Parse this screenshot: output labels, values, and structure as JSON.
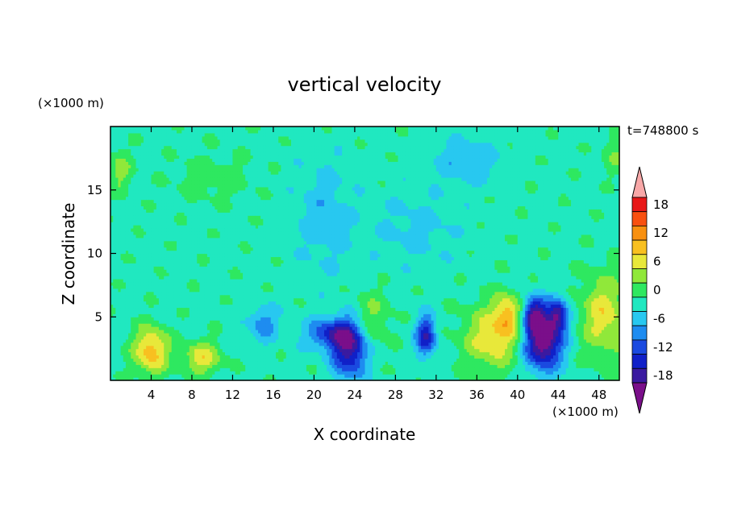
{
  "chart_data": {
    "type": "heatmap",
    "title": "vertical velocity",
    "xlabel": "X coordinate",
    "ylabel": "Z coordinate",
    "x_unit": "(×1000 m)",
    "y_unit": "(×1000 m)",
    "time_label": "t=748800 s",
    "xlim": [
      0,
      50
    ],
    "ylim": [
      0,
      20
    ],
    "xticks": [
      4,
      8,
      12,
      16,
      20,
      24,
      28,
      32,
      36,
      40,
      44,
      48
    ],
    "yticks": [
      5,
      10,
      15
    ],
    "colorbar": {
      "levels": [
        -21,
        -18,
        -15,
        -12,
        -9,
        -6,
        -3,
        0,
        3,
        6,
        9,
        12,
        15,
        18,
        21
      ],
      "labels": [
        18,
        12,
        6,
        0,
        -6,
        -12,
        -18
      ],
      "colors": [
        "#7a0f8a",
        "#3a1aa0",
        "#1020c8",
        "#1a4ae0",
        "#1e8cf0",
        "#28c8f0",
        "#20e8c0",
        "#2ee860",
        "#90e83a",
        "#e8e83a",
        "#f8c020",
        "#f89010",
        "#f85010",
        "#e81818",
        "#f8a8a8"
      ],
      "extend": "both"
    },
    "background_value": -1,
    "features": [
      {
        "x": 4,
        "z": 2.4,
        "value": 12,
        "sx": 1.2,
        "sz": 1.3
      },
      {
        "x": 9,
        "z": 1.8,
        "value": 9,
        "sx": 1.3,
        "sz": 0.9
      },
      {
        "x": 15,
        "z": 4.5,
        "value": -7,
        "sx": 1,
        "sz": 1
      },
      {
        "x": 23.5,
        "z": 2.6,
        "value": -17,
        "sx": 1.2,
        "sz": 1.6
      },
      {
        "x": 21.5,
        "z": 3.7,
        "value": -11,
        "sx": 1.6,
        "sz": 0.8
      },
      {
        "x": 25.5,
        "z": 4.8,
        "value": 5,
        "sx": 1.4,
        "sz": 1.6
      },
      {
        "x": 31,
        "z": 3.5,
        "value": -14,
        "sx": 0.7,
        "sz": 1.1
      },
      {
        "x": 37.5,
        "z": 3.4,
        "value": 9,
        "sx": 2,
        "sz": 1.8
      },
      {
        "x": 39,
        "z": 5.2,
        "value": 9,
        "sx": 0.9,
        "sz": 1.2
      },
      {
        "x": 42.5,
        "z": 3.2,
        "value": -21,
        "sx": 1.3,
        "sz": 1.6
      },
      {
        "x": 41.6,
        "z": 5.3,
        "value": -13,
        "sx": 0.7,
        "sz": 0.9
      },
      {
        "x": 44,
        "z": 5.2,
        "value": -13,
        "sx": 0.7,
        "sz": 0.9
      },
      {
        "x": 48.5,
        "z": 5.2,
        "value": 9,
        "sx": 1.6,
        "sz": 2.2
      },
      {
        "x": 1,
        "z": 16.5,
        "value": 5,
        "sx": 0.8,
        "sz": 1.2
      },
      {
        "x": 49.5,
        "z": 18,
        "value": 4,
        "sx": 0.8,
        "sz": 1.2
      },
      {
        "x": 35,
        "z": 17.3,
        "value": -5,
        "sx": 2.2,
        "sz": 1.2
      },
      {
        "x": 21,
        "z": 13,
        "value": -4,
        "sx": 2,
        "sz": 3
      },
      {
        "x": 10,
        "z": 16,
        "value": 3,
        "sx": 2.5,
        "sz": 1.2
      },
      {
        "x": 30,
        "z": 12,
        "value": -3,
        "sx": 3,
        "sz": 2
      }
    ]
  }
}
